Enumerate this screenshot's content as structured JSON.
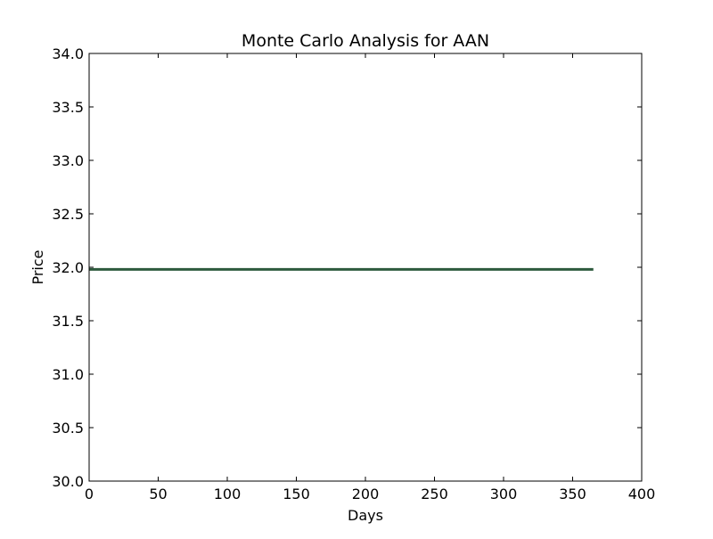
{
  "chart_data": {
    "type": "line",
    "title": "Monte Carlo Analysis for AAN",
    "xlabel": "Days",
    "ylabel": "Price",
    "xlim": [
      0,
      400
    ],
    "ylim": [
      30.0,
      34.0
    ],
    "x_ticks": [
      "0",
      "50",
      "100",
      "150",
      "200",
      "250",
      "300",
      "350",
      "400"
    ],
    "y_ticks": [
      "30.0",
      "30.5",
      "31.0",
      "31.5",
      "32.0",
      "32.5",
      "33.0",
      "33.5",
      "34.0"
    ],
    "grid": false,
    "legend": "none",
    "series": [
      {
        "color": "#2d5a3d",
        "x": [
          0,
          365
        ],
        "y": [
          31.98,
          31.98
        ]
      }
    ]
  }
}
